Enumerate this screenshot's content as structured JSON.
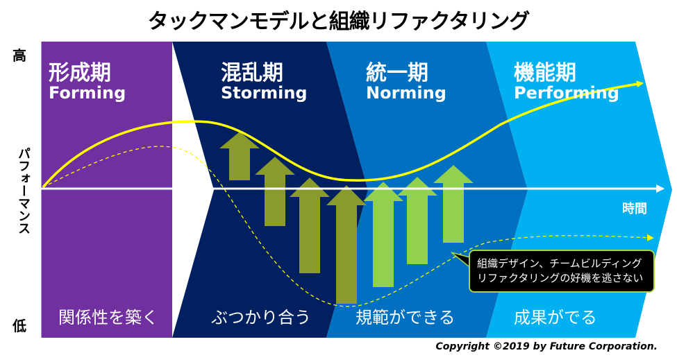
{
  "title": "タックマンモデルと組織リファクタリング",
  "y_axis": {
    "label": "パフォーマンス",
    "high": "高",
    "low": "低"
  },
  "x_axis": {
    "label": "時間"
  },
  "stages": [
    {
      "jp": "形成期",
      "en": "Forming",
      "caption": "関係性を築く",
      "color": "#7030a0"
    },
    {
      "jp": "混乱期",
      "en": "Storming",
      "caption": "ぶつかり合う",
      "color": "#002060"
    },
    {
      "jp": "統一期",
      "en": "Norming",
      "caption": "規範ができる",
      "color": "#0070c0"
    },
    {
      "jp": "機能期",
      "en": "Performing",
      "caption": "成果がでる",
      "color": "#00b0f0"
    }
  ],
  "note": {
    "line1": "組織デザイン、チームビルディング",
    "line2": "リファクタリングの好機を逃さない"
  },
  "colors": {
    "curve": "#ffff00",
    "arrow_storming": "#8a9a2b",
    "arrow_norming": "#92d050",
    "axis": "#ffffff"
  },
  "copyright": "Copyright ©2019 by Future Corporation."
}
